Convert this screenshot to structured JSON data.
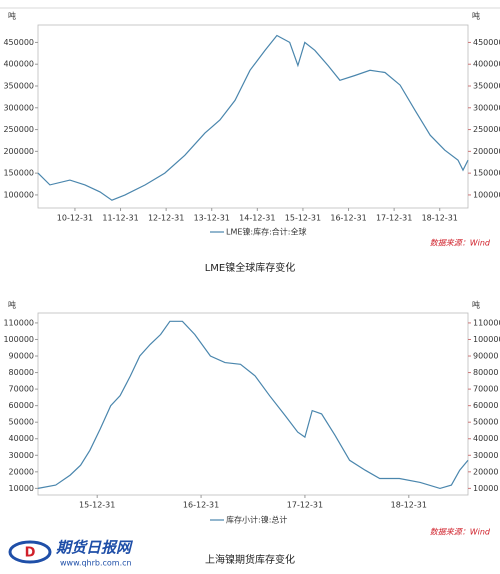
{
  "chart_data": [
    {
      "type": "line",
      "title": "LME镍全球库存变化",
      "unit": "吨",
      "source": "数据来源：Wind",
      "x": [
        2010.19,
        2010.45,
        2010.89,
        2011.22,
        2011.55,
        2011.81,
        2012.1,
        2012.54,
        2012.97,
        2013.41,
        2013.85,
        2014.18,
        2014.51,
        2014.84,
        2015.17,
        2015.43,
        2015.71,
        2015.89,
        2016.04,
        2016.26,
        2016.55,
        2016.81,
        2017.14,
        2017.47,
        2017.8,
        2018.13,
        2018.46,
        2018.79,
        2019.11,
        2019.4,
        2019.51,
        2019.62
      ],
      "series": [
        {
          "name": "LME镍:库存:合计:全球",
          "color": "#4a86ad",
          "values": [
            150000,
            123000,
            134000,
            123000,
            107000,
            88000,
            100000,
            123000,
            150000,
            191000,
            242000,
            272000,
            317000,
            386000,
            432000,
            466000,
            450000,
            397000,
            450000,
            432000,
            397000,
            363000,
            374000,
            386000,
            381000,
            352000,
            294000,
            237000,
            203000,
            180000,
            157000,
            180000
          ]
        }
      ],
      "xlim": [
        2010.19,
        2019.62
      ],
      "xticks": [
        {
          "value": 2011,
          "label": "10-12-31"
        },
        {
          "value": 2012,
          "label": "11-12-31"
        },
        {
          "value": 2013,
          "label": "12-12-31"
        },
        {
          "value": 2014,
          "label": "13-12-31"
        },
        {
          "value": 2015,
          "label": "14-12-31"
        },
        {
          "value": 2016,
          "label": "15-12-31"
        },
        {
          "value": 2017,
          "label": "16-12-31"
        },
        {
          "value": 2018,
          "label": "17-12-31"
        },
        {
          "value": 2019,
          "label": "18-12-31"
        }
      ],
      "ylim": [
        70000,
        490000
      ],
      "yticks": [
        100000,
        150000,
        200000,
        250000,
        300000,
        350000,
        400000,
        450000
      ]
    },
    {
      "type": "line",
      "title": "上海镍期货库存变化",
      "unit": "吨",
      "source": "数据来源：Wind",
      "x": [
        2015.43,
        2015.6,
        2015.74,
        2015.84,
        2015.93,
        2016.03,
        2016.13,
        2016.22,
        2016.32,
        2016.41,
        2016.51,
        2016.61,
        2016.7,
        2016.82,
        2016.94,
        2017.09,
        2017.23,
        2017.38,
        2017.52,
        2017.66,
        2017.81,
        2017.93,
        2018.0,
        2018.07,
        2018.16,
        2018.29,
        2018.43,
        2018.58,
        2018.72,
        2018.91,
        2019.11,
        2019.3,
        2019.41,
        2019.49,
        2019.57
      ],
      "series": [
        {
          "name": "库存小计:镍:总计",
          "color": "#4a86ad",
          "values": [
            10000,
            12000,
            18000,
            24000,
            33000,
            46000,
            60000,
            66000,
            78000,
            90000,
            97000,
            103000,
            111000,
            111000,
            103000,
            90000,
            86000,
            85000,
            78000,
            66000,
            54000,
            44000,
            41000,
            57000,
            55000,
            42000,
            27000,
            21000,
            16000,
            16000,
            13600,
            10000,
            12000,
            21000,
            27000
          ]
        }
      ],
      "xlim": [
        2015.43,
        2019.57
      ],
      "xticks": [
        {
          "value": 2016,
          "label": "15-12-31"
        },
        {
          "value": 2017,
          "label": "16-12-31"
        },
        {
          "value": 2018,
          "label": "17-12-31"
        },
        {
          "value": 2019,
          "label": "18-12-31"
        }
      ],
      "ylim": [
        6000,
        116000
      ],
      "yticks": [
        10000,
        20000,
        30000,
        40000,
        50000,
        60000,
        70000,
        80000,
        90000,
        100000,
        110000
      ]
    }
  ],
  "logo": {
    "name": "期货日报网",
    "url": "www.qhrb.com.cn"
  }
}
